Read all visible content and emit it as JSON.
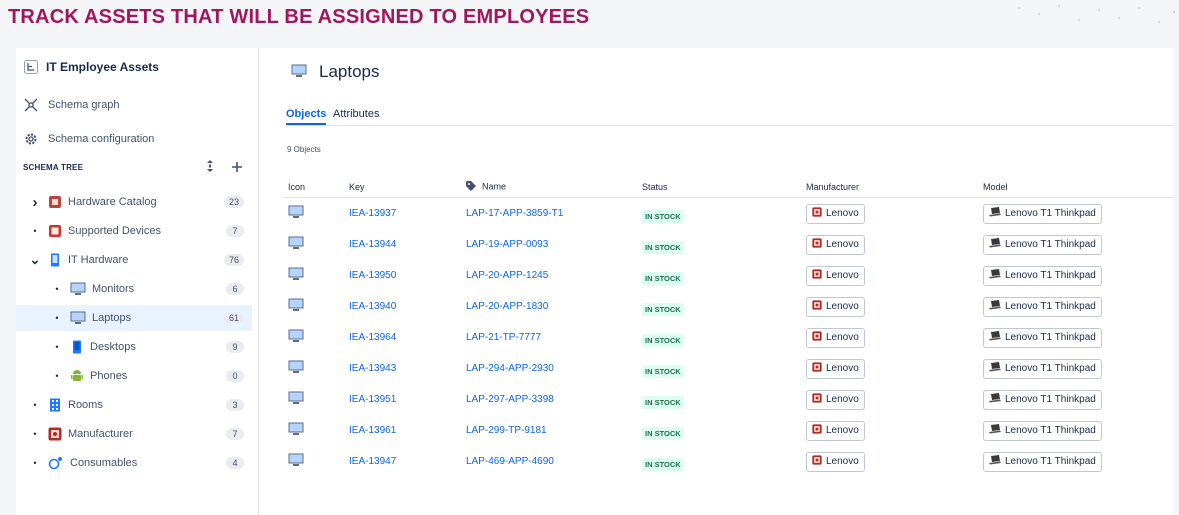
{
  "banner": {
    "title": "TRACK ASSETS THAT WILL BE ASSIGNED TO EMPLOYEES"
  },
  "colors": {
    "banner": "#a0175f",
    "accent": "#0c66e4",
    "status_bg": "#dcfff1",
    "status_fg": "#216e4e"
  },
  "sidebar": {
    "schema_name": "IT Employee Assets",
    "links": [
      {
        "label": "Schema graph",
        "icon": "schema-graph-icon"
      },
      {
        "label": "Schema configuration",
        "icon": "gear-icon"
      }
    ],
    "tree_label": "SCHEMA TREE",
    "tree": [
      {
        "label": "Hardware Catalog",
        "count": "23",
        "icon": "catalog-icon",
        "expander": "chevron-right"
      },
      {
        "label": "Supported Devices",
        "count": "7",
        "icon": "supported-devices-icon",
        "expander": "bullet"
      },
      {
        "label": "IT Hardware",
        "count": "76",
        "icon": "it-hardware-icon",
        "expander": "chevron-down"
      },
      {
        "label": "Monitors",
        "count": "6",
        "icon": "monitor-icon",
        "expander": "bullet"
      },
      {
        "label": "Laptops",
        "count": "61",
        "icon": "laptop-icon",
        "expander": "bullet",
        "selected": true
      },
      {
        "label": "Desktops",
        "count": "9",
        "icon": "desktop-icon",
        "expander": "bullet"
      },
      {
        "label": "Phones",
        "count": "0",
        "icon": "android-icon",
        "expander": "bullet"
      },
      {
        "label": "Rooms",
        "count": "3",
        "icon": "building-icon",
        "expander": "bullet"
      },
      {
        "label": "Manufacturer",
        "count": "7",
        "icon": "manufacturer-icon",
        "expander": "bullet"
      },
      {
        "label": "Consumables",
        "count": "4",
        "icon": "consumables-icon",
        "expander": "bullet"
      }
    ]
  },
  "main": {
    "title": "Laptops",
    "tabs": [
      "Objects",
      "Attributes"
    ],
    "count_text": "9 Objects",
    "columns": [
      "Icon",
      "Key",
      "Name",
      "Status",
      "Manufacturer",
      "Model"
    ],
    "rows": [
      {
        "key": "IEA-13937",
        "name": "LAP-17-APP-3859-T1",
        "status": "IN STOCK",
        "manufacturer": "Lenovo",
        "model": "Lenovo T1 Thinkpad"
      },
      {
        "key": "IEA-13944",
        "name": "LAP-19-APP-0093",
        "status": "IN STOCK",
        "manufacturer": "Lenovo",
        "model": "Lenovo T1 Thinkpad"
      },
      {
        "key": "IEA-13950",
        "name": "LAP-20-APP-1245",
        "status": "IN STOCK",
        "manufacturer": "Lenovo",
        "model": "Lenovo T1 Thinkpad"
      },
      {
        "key": "IEA-13940",
        "name": "LAP-20-APP-1830",
        "status": "IN STOCK",
        "manufacturer": "Lenovo",
        "model": "Lenovo T1 Thinkpad"
      },
      {
        "key": "IEA-13964",
        "name": "LAP-21-TP-7777",
        "status": "IN STOCK",
        "manufacturer": "Lenovo",
        "model": "Lenovo T1 Thinkpad"
      },
      {
        "key": "IEA-13943",
        "name": "LAP-294-APP-2930",
        "status": "IN STOCK",
        "manufacturer": "Lenovo",
        "model": "Lenovo T1 Thinkpad"
      },
      {
        "key": "IEA-13951",
        "name": "LAP-297-APP-3398",
        "status": "IN STOCK",
        "manufacturer": "Lenovo",
        "model": "Lenovo T1 Thinkpad"
      },
      {
        "key": "IEA-13961",
        "name": "LAP-299-TP-9181",
        "status": "IN STOCK",
        "manufacturer": "Lenovo",
        "model": "Lenovo T1 Thinkpad"
      },
      {
        "key": "IEA-13947",
        "name": "LAP-469-APP-4690",
        "status": "IN STOCK",
        "manufacturer": "Lenovo",
        "model": "Lenovo T1 Thinkpad"
      }
    ]
  }
}
